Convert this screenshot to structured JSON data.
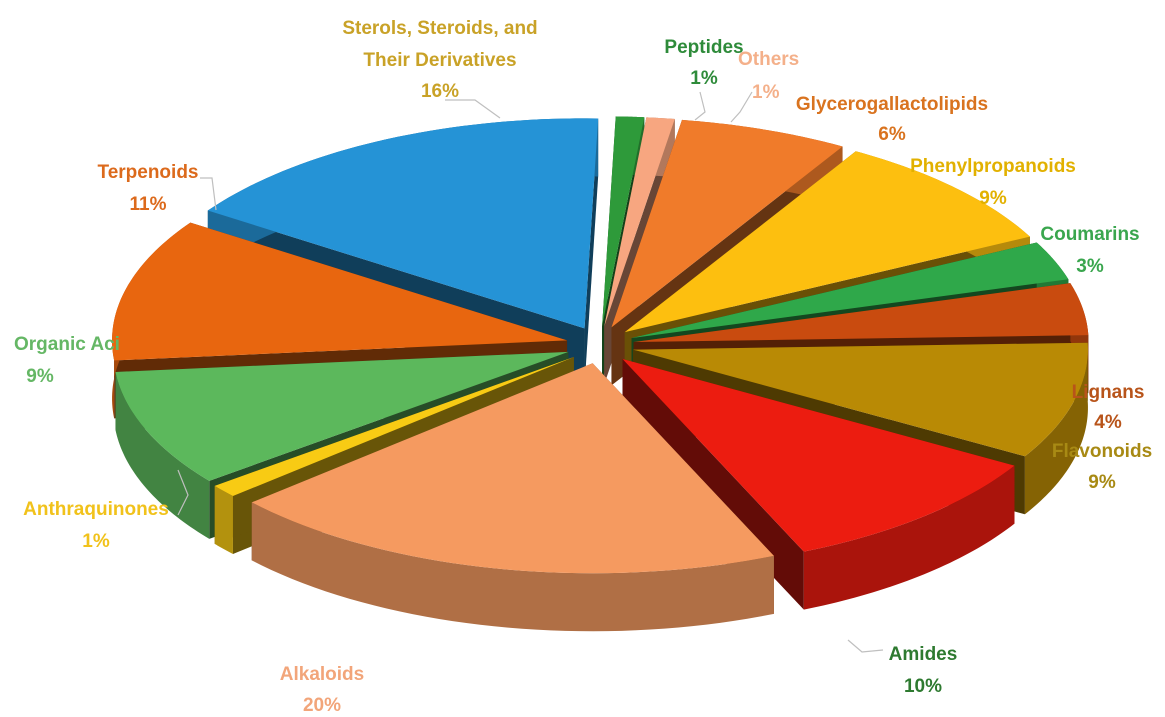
{
  "chart_data": {
    "type": "pie",
    "title": "",
    "legend": "none",
    "slices": [
      {
        "label": "Peptides",
        "value": 1,
        "pct_label": "1%",
        "color": "#2e9a3a",
        "label_color": "#2e8b3a"
      },
      {
        "label": "Others",
        "value": 1,
        "pct_label": "1%",
        "color": "#f7a680",
        "label_color": "#f4b08a"
      },
      {
        "label": "Glycerogallactolipids",
        "value": 6,
        "pct_label": "6%",
        "color": "#f07b2a",
        "label_color": "#d9731f"
      },
      {
        "label": "Phenylpropanoids",
        "value": 9,
        "pct_label": "9%",
        "color": "#fdbf0f",
        "label_color": "#e2b100"
      },
      {
        "label": "Coumarins",
        "value": 3,
        "pct_label": "3%",
        "color": "#2fa84a",
        "label_color": "#3aa64e"
      },
      {
        "label": "Lignans",
        "value": 4,
        "pct_label": "4%",
        "color": "#c94b0f",
        "label_color": "#b8541a"
      },
      {
        "label": "Flavonoids",
        "value": 9,
        "pct_label": "9%",
        "color": "#b98a05",
        "label_color": "#a88a14"
      },
      {
        "label": "Amides",
        "value": 10,
        "pct_label": "10%",
        "color": "#ec1c10",
        "label_color": "#2e7a30"
      },
      {
        "label": "Alkaloids",
        "value": 20,
        "pct_label": "20%",
        "color": "#f59a60",
        "label_color": "#f2a57a"
      },
      {
        "label": "Anthraquinones",
        "value": 1,
        "pct_label": "1%",
        "color": "#f8cb14",
        "label_color": "#f1c21b"
      },
      {
        "label": "Organic Acids",
        "value": 9,
        "pct_label": "9%",
        "color": "#5cb85c",
        "label_color": "#65b765"
      },
      {
        "label": "Terpenoids",
        "value": 11,
        "pct_label": "11%",
        "color": "#e8660f",
        "label_color": "#dc6a1c"
      },
      {
        "label": "Sterols, Steroids, and Their Derivatives",
        "value": 16,
        "pct_label": "16%",
        "color": "#2593d6",
        "label_color": "#c9a227"
      }
    ]
  },
  "labels": {
    "peptides": {
      "line1": "Peptides",
      "pct": "1%"
    },
    "others": {
      "line1": "Others",
      "pct": "1%"
    },
    "glycero": {
      "line1": "Glycerogallactolipids",
      "pct": "6%"
    },
    "phenyl": {
      "line1": "Phenylpropanoids",
      "pct": "9%"
    },
    "coumarins": {
      "line1": "Coumarins",
      "pct": "3%"
    },
    "lignans": {
      "line1": "Lignans",
      "pct": "4%"
    },
    "flavonoids": {
      "line1": "Flavonoids",
      "pct": "9%"
    },
    "amides": {
      "line1": "Amides",
      "pct": "10%"
    },
    "alkaloids": {
      "line1": "Alkaloids",
      "pct": "20%"
    },
    "anthraquinones": {
      "line1": "Anthraquinones",
      "pct": "1%"
    },
    "organic": {
      "line1": "Organic Aci",
      "pct": "9%"
    },
    "terpenoids": {
      "line1": "Terpenoids",
      "pct": "11%"
    },
    "sterols": {
      "line1": "Sterols, Steroids, and",
      "line2": "Their Derivatives",
      "pct": "16%"
    }
  }
}
